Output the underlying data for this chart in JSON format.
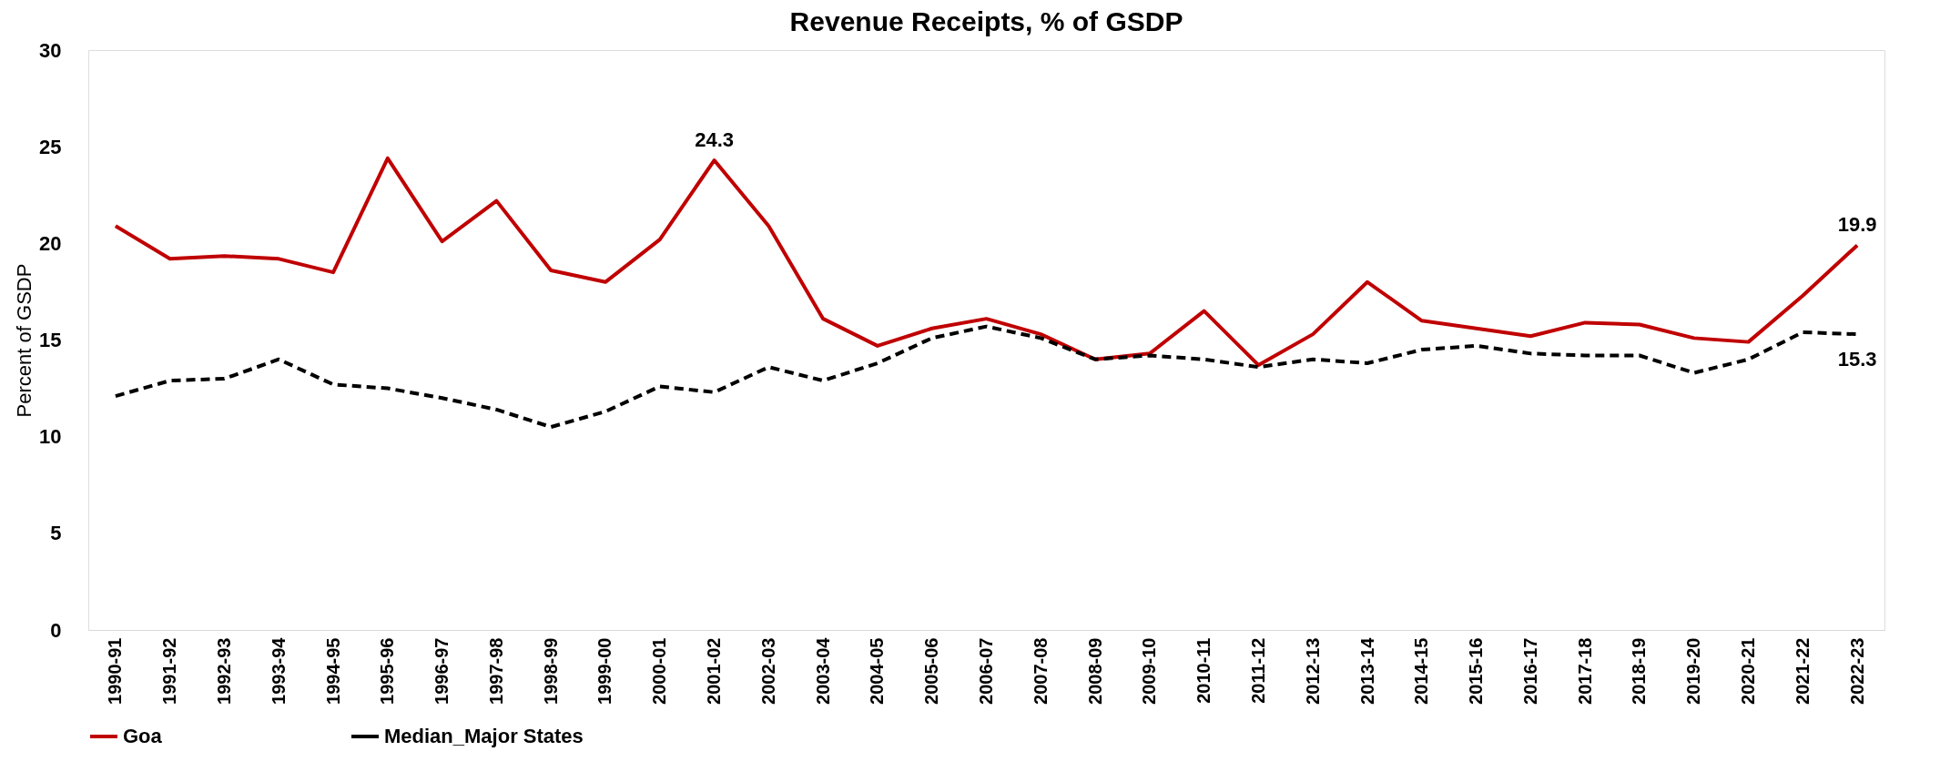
{
  "chart_data": {
    "type": "line",
    "title": "Revenue Receipts, % of GSDP",
    "ylabel": "Percent of GSDP",
    "categories": [
      "1990-91",
      "1991-92",
      "1992-93",
      "1993-94",
      "1994-95",
      "1995-96",
      "1996-97",
      "1997-98",
      "1998-99",
      "1999-00",
      "2000-01",
      "2001-02",
      "2002-03",
      "2003-04",
      "2004-05",
      "2005-06",
      "2006-07",
      "2007-08",
      "2008-09",
      "2009-10",
      "2010-11",
      "2011-12",
      "2012-13",
      "2013-14",
      "2014-15",
      "2015-16",
      "2016-17",
      "2017-18",
      "2018-19",
      "2019-20",
      "2020-21",
      "2021-22",
      "2022-23"
    ],
    "series": [
      {
        "name": "Goa",
        "color": "#c00000",
        "line_style": "solid",
        "values": [
          20.9,
          19.2,
          19.35,
          19.2,
          18.5,
          24.4,
          20.1,
          22.2,
          18.6,
          18.0,
          20.2,
          24.3,
          20.9,
          16.1,
          14.7,
          15.6,
          16.1,
          15.3,
          14.0,
          14.3,
          16.5,
          13.7,
          15.3,
          18.0,
          16.0,
          15.6,
          15.2,
          15.9,
          15.8,
          15.1,
          14.9,
          17.3,
          19.9
        ],
        "value_labels": [
          null,
          null,
          null,
          null,
          null,
          null,
          null,
          null,
          null,
          null,
          null,
          "24.3",
          null,
          null,
          null,
          null,
          null,
          null,
          null,
          null,
          null,
          null,
          null,
          null,
          null,
          null,
          null,
          null,
          null,
          null,
          null,
          null,
          "19.9"
        ]
      },
      {
        "name": "Median_Major States",
        "color": "#000000",
        "line_style": "dashed",
        "values": [
          12.1,
          12.9,
          13.0,
          14.0,
          12.7,
          12.5,
          12.0,
          11.4,
          10.5,
          11.3,
          12.6,
          12.3,
          13.6,
          12.9,
          13.8,
          15.1,
          15.7,
          15.1,
          14.0,
          14.2,
          14.0,
          13.6,
          14.0,
          13.8,
          14.5,
          14.7,
          14.3,
          14.2,
          14.2,
          13.3,
          14.0,
          15.4,
          15.3
        ],
        "value_labels": [
          null,
          null,
          null,
          null,
          null,
          null,
          null,
          null,
          null,
          null,
          null,
          null,
          null,
          null,
          null,
          null,
          null,
          null,
          null,
          null,
          null,
          null,
          null,
          null,
          null,
          null,
          null,
          null,
          null,
          null,
          null,
          null,
          "15.3"
        ]
      }
    ],
    "ylim": [
      0,
      30
    ],
    "yticks": [
      0,
      5,
      10,
      15,
      20,
      25,
      30
    ],
    "grid": false,
    "legend": "bottom"
  }
}
